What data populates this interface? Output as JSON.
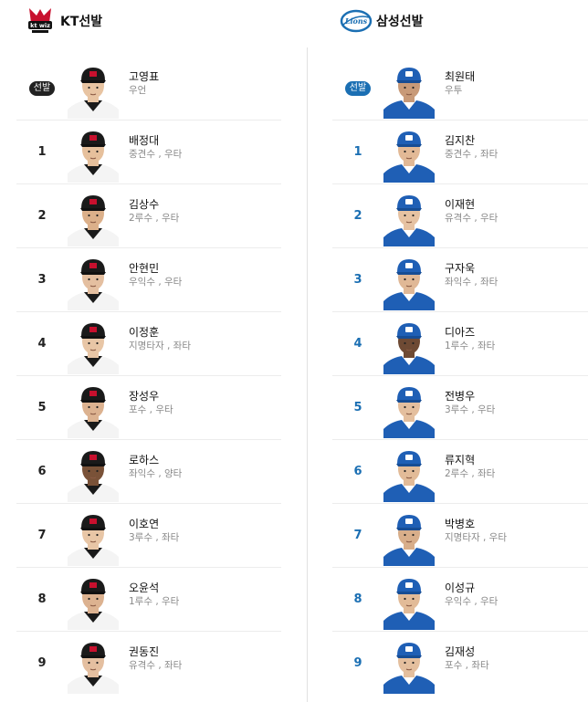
{
  "kt": {
    "title": "KT선발",
    "badge": "선발",
    "players": [
      {
        "order": "",
        "name": "고영표",
        "pos": "우언",
        "skin": "#e8c4a2"
      },
      {
        "order": "1",
        "name": "배정대",
        "pos": "중견수 , 우타",
        "skin": "#e6c09c"
      },
      {
        "order": "2",
        "name": "김상수",
        "pos": "2루수 , 우타",
        "skin": "#dcb08a"
      },
      {
        "order": "3",
        "name": "안현민",
        "pos": "우익수 , 우타",
        "skin": "#e4bfa0"
      },
      {
        "order": "4",
        "name": "이정훈",
        "pos": "지명타자 , 좌타",
        "skin": "#e8c6a6"
      },
      {
        "order": "5",
        "name": "장성우",
        "pos": "포수 , 우타",
        "skin": "#dcb290"
      },
      {
        "order": "6",
        "name": "로하스",
        "pos": "좌익수 , 양타",
        "skin": "#7a5238"
      },
      {
        "order": "7",
        "name": "이호연",
        "pos": "3루수 , 좌타",
        "skin": "#e8c6a6"
      },
      {
        "order": "8",
        "name": "오윤석",
        "pos": "1루수 , 우타",
        "skin": "#dcb290"
      },
      {
        "order": "9",
        "name": "권동진",
        "pos": "유격수 , 좌타",
        "skin": "#e4bfa0"
      }
    ]
  },
  "samsung": {
    "title": "삼성선발",
    "badge": "선발",
    "players": [
      {
        "order": "",
        "name": "최원태",
        "pos": "우투",
        "skin": "#c89a78"
      },
      {
        "order": "1",
        "name": "김지찬",
        "pos": "중견수 , 좌타",
        "skin": "#e2b996"
      },
      {
        "order": "2",
        "name": "이재현",
        "pos": "유격수 , 우타",
        "skin": "#e6c2a2"
      },
      {
        "order": "3",
        "name": "구자욱",
        "pos": "좌익수 , 좌타",
        "skin": "#e0b896"
      },
      {
        "order": "4",
        "name": "디아즈",
        "pos": "1루수 , 좌타",
        "skin": "#6e4a34"
      },
      {
        "order": "5",
        "name": "전병우",
        "pos": "3루수 , 우타",
        "skin": "#e4bf9e"
      },
      {
        "order": "6",
        "name": "류지혁",
        "pos": "2루수 , 좌타",
        "skin": "#e2bb98"
      },
      {
        "order": "7",
        "name": "박병호",
        "pos": "지명타자 , 우타",
        "skin": "#d8ae8a"
      },
      {
        "order": "8",
        "name": "이성규",
        "pos": "우익수 , 우타",
        "skin": "#e2bb98"
      },
      {
        "order": "9",
        "name": "김재성",
        "pos": "포수 , 좌타",
        "skin": "#e4bf9e"
      }
    ]
  },
  "colors": {
    "kt_uniform": "#1a1a1a",
    "samsung_uniform": "#1f5fb5",
    "samsung_accent": "#1b6fb3"
  }
}
